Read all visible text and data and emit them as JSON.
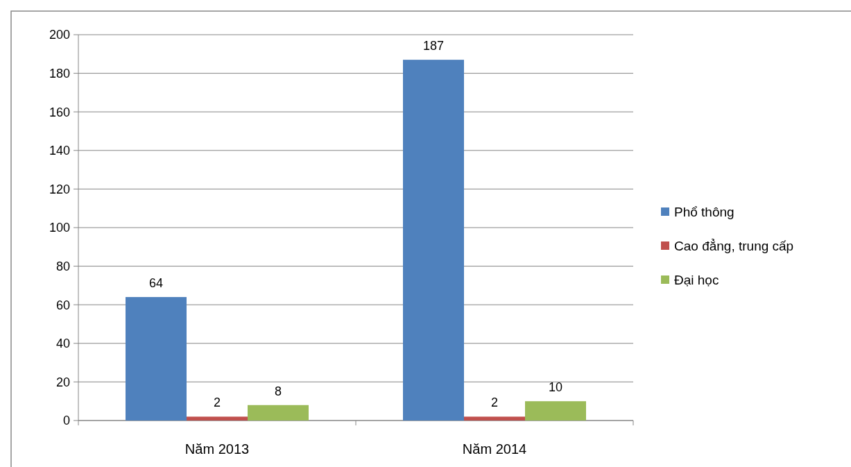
{
  "chart_data": {
    "type": "bar",
    "categories": [
      "Năm 2013",
      "Năm 2014"
    ],
    "series": [
      {
        "name": "Phổ thông",
        "color": "#4f81bd",
        "values": [
          64,
          187
        ]
      },
      {
        "name": "Cao đẳng, trung cấp",
        "color": "#c0504d",
        "values": [
          2,
          2
        ]
      },
      {
        "name": "Đại học",
        "color": "#9bbb59",
        "values": [
          8,
          10
        ]
      }
    ],
    "ylim": [
      0,
      200
    ],
    "yticks": [
      0,
      20,
      40,
      60,
      80,
      100,
      120,
      140,
      160,
      180,
      200
    ],
    "grid": "y",
    "legend": "right",
    "data_labels": true
  }
}
